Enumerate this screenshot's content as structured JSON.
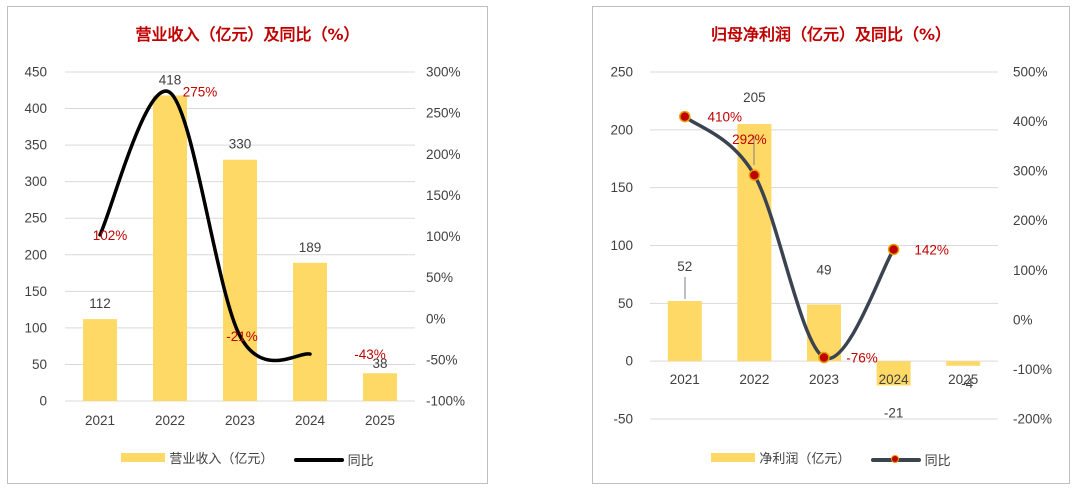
{
  "chart_data": [
    {
      "type": "bar",
      "title": "营业收入（亿元）及同比（%）",
      "categories": [
        "2021",
        "2022",
        "2023",
        "2024",
        "2025"
      ],
      "series": [
        {
          "name": "营业收入（亿元）",
          "type": "bar",
          "axis": "left",
          "values": [
            112,
            418,
            330,
            189,
            38
          ],
          "labels": [
            "112",
            "418",
            "330",
            "189",
            "38"
          ]
        },
        {
          "name": "同比",
          "type": "line",
          "axis": "right",
          "values": [
            102,
            275,
            -21,
            -43,
            null
          ],
          "labels": [
            "102%",
            "275%",
            "-21%",
            "-43%",
            ""
          ]
        }
      ],
      "ylim": [
        0,
        450
      ],
      "yticks": [
        0,
        50,
        100,
        150,
        200,
        250,
        300,
        350,
        400,
        450
      ],
      "y2lim": [
        -100,
        300
      ],
      "y2ticks": [
        "-100%",
        "-50%",
        "0%",
        "50%",
        "100%",
        "150%",
        "200%",
        "250%",
        "300%"
      ],
      "legend": [
        "营业收入（亿元）",
        "同比"
      ]
    },
    {
      "type": "bar",
      "title": "归母净利润（亿元）及同比（%）",
      "categories": [
        "2021",
        "2022",
        "2023",
        "2024",
        "2025"
      ],
      "series": [
        {
          "name": "净利润（亿元）",
          "type": "bar",
          "axis": "left",
          "values": [
            52,
            205,
            49,
            -21,
            -4
          ],
          "labels": [
            "52",
            "205",
            "49",
            "-21",
            "-4"
          ]
        },
        {
          "name": "同比",
          "type": "line",
          "axis": "right",
          "values": [
            410,
            292,
            -76,
            142,
            null
          ],
          "labels": [
            "410%",
            "292%",
            "-76%",
            "142%",
            ""
          ]
        }
      ],
      "ylim": [
        -50,
        250
      ],
      "yticks": [
        -50,
        0,
        50,
        100,
        150,
        200,
        250
      ],
      "y2lim": [
        -200,
        500
      ],
      "y2ticks": [
        "-200%",
        "-100%",
        "0%",
        "100%",
        "200%",
        "300%",
        "400%",
        "500%"
      ],
      "legend": [
        "净利润（亿元）",
        "同比"
      ]
    }
  ],
  "colors": {
    "bar": "#ffd966",
    "line_left": "#000000",
    "line_right": "#3c4350",
    "marker": "#c00000",
    "label_red": "#c00000",
    "axis_text": "#404040",
    "grid": "#d9d9d9"
  }
}
